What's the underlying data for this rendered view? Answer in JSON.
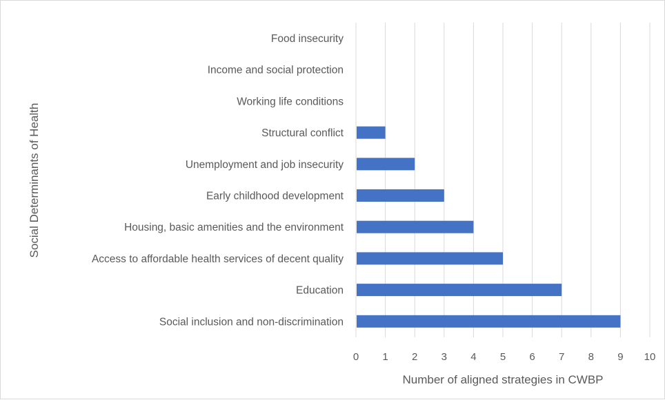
{
  "chart_data": {
    "type": "bar",
    "orientation": "horizontal",
    "categories": [
      "Food insecurity",
      "Income and social protection",
      "Working life conditions",
      "Structural conflict",
      "Unemployment and job insecurity",
      "Early childhood development",
      "Housing, basic amenities and the environment",
      "Access to affordable health services of decent quality",
      "Education",
      "Social inclusion and non-discrimination"
    ],
    "values": [
      0,
      0,
      0,
      1,
      2,
      3,
      4,
      5,
      7,
      9
    ],
    "xlabel": "Number of aligned strategies in CWBP",
    "ylabel": "Social Determinants of Health",
    "xlim": [
      0,
      10
    ],
    "xticks": [
      0,
      1,
      2,
      3,
      4,
      5,
      6,
      7,
      8,
      9,
      10
    ],
    "grid": "vertical",
    "legend": "none",
    "bar_color": "#4472C4",
    "grid_color": "#d9d9d9"
  }
}
